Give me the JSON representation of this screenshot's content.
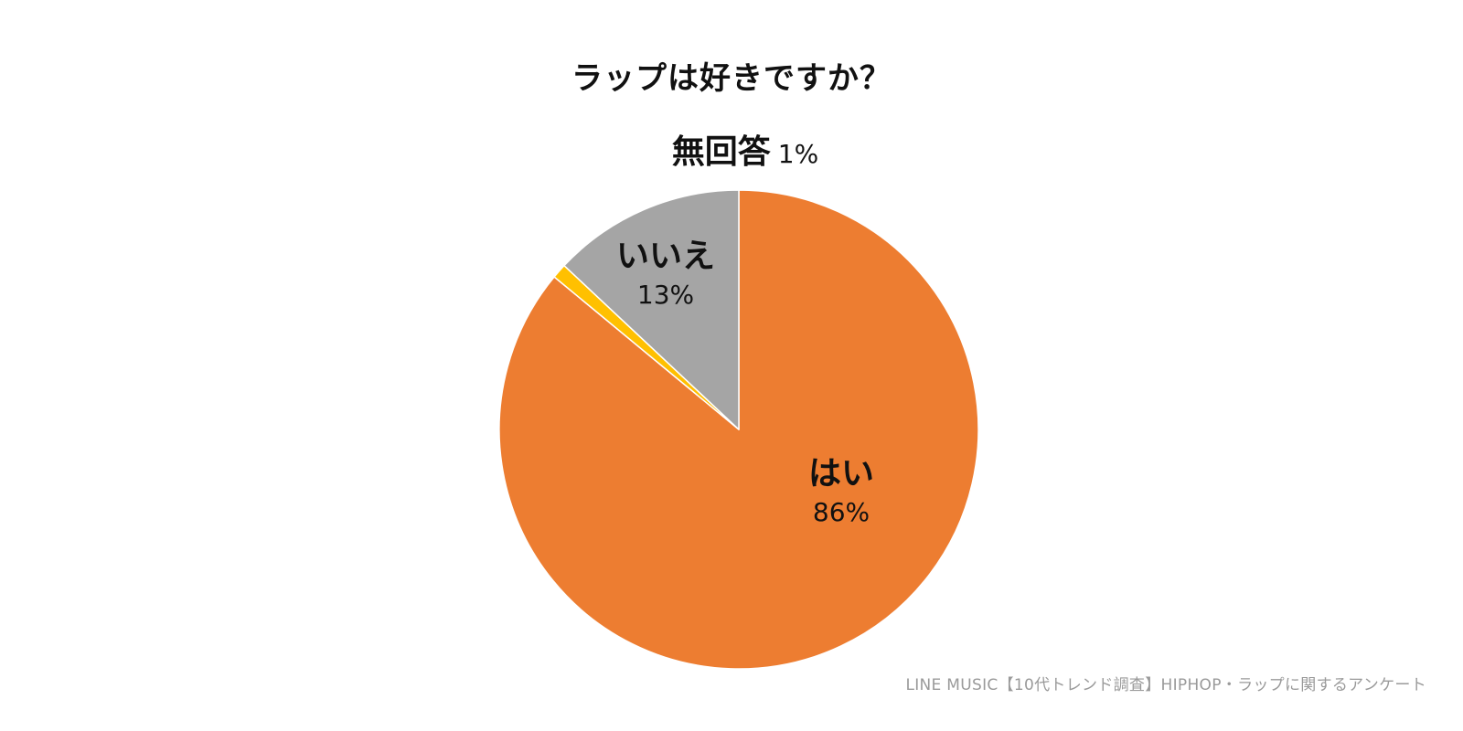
{
  "chart_data": {
    "type": "pie",
    "title": "ラップは好きですか？",
    "slices": [
      {
        "label": "はい",
        "value": 86,
        "value_label": "86%",
        "color": "#ED7D31"
      },
      {
        "label": "無回答",
        "value": 1,
        "value_label": "1%",
        "color": "#FFC000"
      },
      {
        "label": "いいえ",
        "value": 13,
        "value_label": "13%",
        "color": "#A5A5A5"
      }
    ],
    "start_angle": "12 o'clock",
    "direction": "clockwise",
    "legend": "none",
    "data_labels": "name and percent"
  },
  "footer": {
    "source": "LINE MUSIC【10代トレンド調査】HIPHOP・ラップに関するアンケート"
  }
}
